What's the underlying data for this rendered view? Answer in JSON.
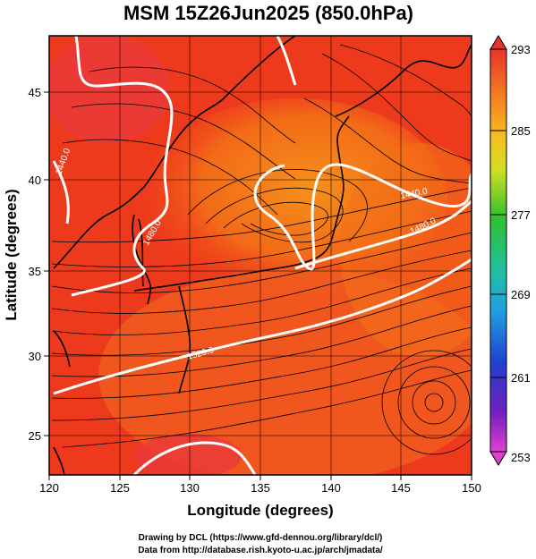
{
  "title": "MSM 15Z26Jun2025 (850.0hPa)",
  "xlabel": "Longitude (degrees)",
  "ylabel": "Latitude  (degrees)",
  "xticks": [
    "120",
    "125",
    "130",
    "135",
    "140",
    "145",
    "150"
  ],
  "yticks": [
    "25",
    "30",
    "35",
    "40",
    "45"
  ],
  "colorbar": {
    "ticks": [
      "293",
      "285",
      "277",
      "269",
      "261",
      "253"
    ],
    "min": 253,
    "max": 293
  },
  "contour_labels": [
    "1440.0",
    "1480.0",
    "1520.0",
    "1480.0",
    "1440.0",
    "1480.0"
  ],
  "credits": {
    "line1": "Drawing by DCL (https://www.gfd-dennou.org/library/dcl/)",
    "line2": "Data from http://database.rish.kyoto-u.ac.jp/arch/jmadata/"
  },
  "colors": {
    "background_field": "#ee3a1c",
    "warm_field": "#f36a18",
    "contour": "#ffffff",
    "frame": "#000000"
  },
  "chart_data": {
    "type": "heatmap",
    "title": "MSM 15Z26Jun2025 (850.0hPa)",
    "xlabel": "Longitude (degrees)",
    "ylabel": "Latitude  (degrees)",
    "xlim": [
      120,
      150
    ],
    "ylim": [
      22.4,
      47.6
    ],
    "colorbar_range": [
      253,
      293
    ],
    "colorbar_ticks": [
      293,
      285,
      277,
      269,
      261,
      253
    ],
    "contour_levels": [
      1440.0,
      1480.0,
      1520.0
    ]
  }
}
